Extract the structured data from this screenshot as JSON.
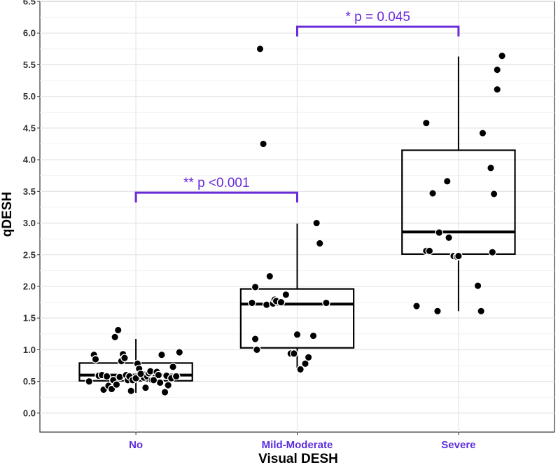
{
  "chart_data": {
    "type": "box",
    "xlabel": "Visual DESH",
    "ylabel": "qDESH",
    "ylim": [
      -0.3,
      6.5
    ],
    "yticks": [
      "0.0",
      "0.5",
      "1.0",
      "1.5",
      "2.0",
      "2.5",
      "3.0",
      "3.5",
      "4.0",
      "4.5",
      "5.0",
      "5.5",
      "6.0",
      "6.5"
    ],
    "grid": true,
    "colors": {
      "category_label": "#5b2ee0",
      "bracket": "#6a2bd9",
      "box": "#000000",
      "point": "#000000"
    },
    "categories": [
      "No",
      "Mild-Moderate",
      "Severe"
    ],
    "boxes": [
      {
        "category": "No",
        "whisker_low": 0.32,
        "q1": 0.51,
        "median": 0.6,
        "q3": 0.79,
        "whisker_high": 1.17
      },
      {
        "category": "Mild-Moderate",
        "whisker_low": 0.69,
        "q1": 1.03,
        "median": 1.72,
        "q3": 1.96,
        "whisker_high": 2.99
      },
      {
        "category": "Severe",
        "whisker_low": 1.61,
        "q1": 2.51,
        "median": 2.86,
        "q3": 4.15,
        "whisker_high": 5.63
      }
    ],
    "points": [
      {
        "category": "No",
        "jitter": [
          -0.29,
          -0.26,
          -0.25,
          -0.23,
          -0.21,
          -0.2,
          -0.18,
          -0.17,
          -0.15,
          -0.14,
          -0.13,
          -0.12,
          -0.11,
          -0.1,
          -0.09,
          -0.08,
          -0.07,
          -0.06,
          -0.05,
          -0.04,
          -0.03,
          0.01,
          0.02,
          0.04,
          0.05,
          0.06,
          0.07,
          0.08,
          0.09,
          0.1,
          0.12,
          0.13,
          0.14,
          0.15,
          0.16,
          0.18,
          0.19,
          0.2,
          0.22,
          0.23,
          0.25,
          0.27,
          -0.02,
          0.0,
          0.11,
          0.03
        ],
        "values": [
          0.5,
          0.92,
          0.85,
          0.59,
          0.6,
          0.37,
          0.58,
          0.43,
          0.38,
          0.52,
          1.2,
          0.45,
          1.31,
          0.57,
          0.82,
          0.93,
          0.87,
          0.6,
          0.52,
          0.58,
          0.35,
          0.78,
          0.7,
          0.62,
          0.56,
          0.4,
          0.58,
          0.63,
          0.66,
          0.52,
          0.56,
          0.65,
          0.6,
          0.48,
          0.92,
          0.33,
          0.59,
          0.44,
          0.55,
          0.73,
          0.58,
          0.96,
          0.52,
          0.55,
          0.52,
          0.62
        ]
      },
      {
        "category": "Mild-Moderate",
        "jitter": [
          -0.28,
          -0.26,
          -0.26,
          -0.25,
          -0.23,
          -0.21,
          -0.19,
          -0.17,
          -0.15,
          -0.14,
          -0.13,
          -0.1,
          -0.07,
          -0.04,
          -0.02,
          0.0,
          0.02,
          0.05,
          0.07,
          0.1,
          0.12,
          0.14,
          0.18
        ],
        "values": [
          1.74,
          1.99,
          1.17,
          1.0,
          5.75,
          4.25,
          1.71,
          2.16,
          1.73,
          1.79,
          1.77,
          1.75,
          1.87,
          0.94,
          0.94,
          1.24,
          0.69,
          0.78,
          0.88,
          1.22,
          3.0,
          2.68,
          1.74
        ]
      },
      {
        "category": "Severe",
        "jitter": [
          -0.26,
          -0.2,
          -0.2,
          -0.18,
          -0.16,
          -0.13,
          -0.12,
          -0.07,
          -0.06,
          -0.03,
          -0.01,
          0.0,
          0.12,
          0.14,
          0.15,
          0.2,
          0.21,
          0.22,
          0.24,
          0.24,
          0.27
        ],
        "values": [
          1.69,
          2.56,
          4.58,
          2.56,
          3.47,
          1.61,
          2.85,
          3.66,
          2.77,
          2.48,
          2.47,
          2.48,
          2.01,
          1.61,
          4.42,
          3.87,
          2.54,
          3.46,
          5.42,
          5.11,
          5.64
        ]
      }
    ],
    "annotations": [
      {
        "text": "** p <0.001",
        "from": "No",
        "to": "Mild-Moderate",
        "y": 3.48
      },
      {
        "text": "* p = 0.045",
        "from": "Mild-Moderate",
        "to": "Severe",
        "y": 6.1
      }
    ]
  }
}
